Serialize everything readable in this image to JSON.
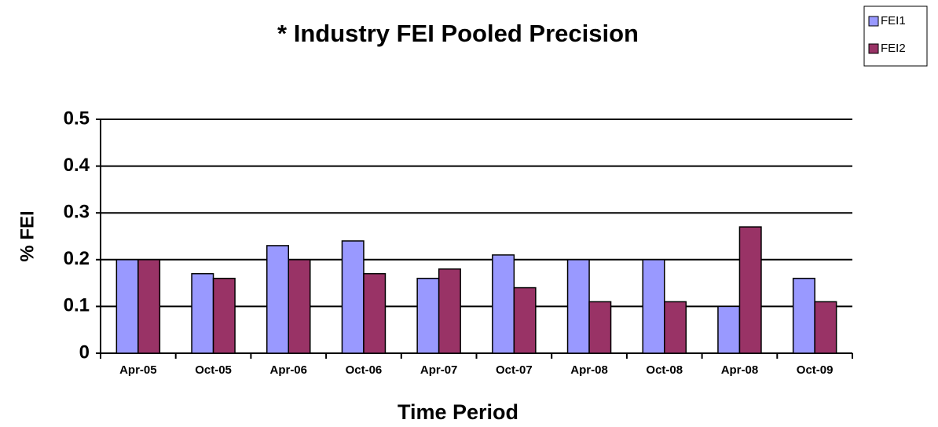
{
  "chart_data": {
    "type": "bar",
    "title": "* Industry FEI Pooled Precision",
    "x_label": "Time Period",
    "y_label": "% FEI",
    "categories": [
      "Apr-05",
      "Oct-05",
      "Apr-06",
      "Oct-06",
      "Apr-07",
      "Oct-07",
      "Apr-08",
      "Oct-08",
      "Apr-08",
      "Oct-09"
    ],
    "series": [
      {
        "name": "FEI1",
        "color": "#9999ff",
        "values": [
          0.2,
          0.17,
          0.23,
          0.24,
          0.16,
          0.21,
          0.2,
          0.2,
          0.1,
          0.16
        ]
      },
      {
        "name": "FEI2",
        "color": "#993366",
        "values": [
          0.2,
          0.16,
          0.2,
          0.17,
          0.18,
          0.14,
          0.11,
          0.11,
          0.27,
          0.11
        ]
      }
    ],
    "ylim": [
      0,
      0.5
    ],
    "yticks": [
      0,
      0.1,
      0.2,
      0.3,
      0.4,
      0.5
    ],
    "grid": true,
    "legend": "top-right"
  }
}
